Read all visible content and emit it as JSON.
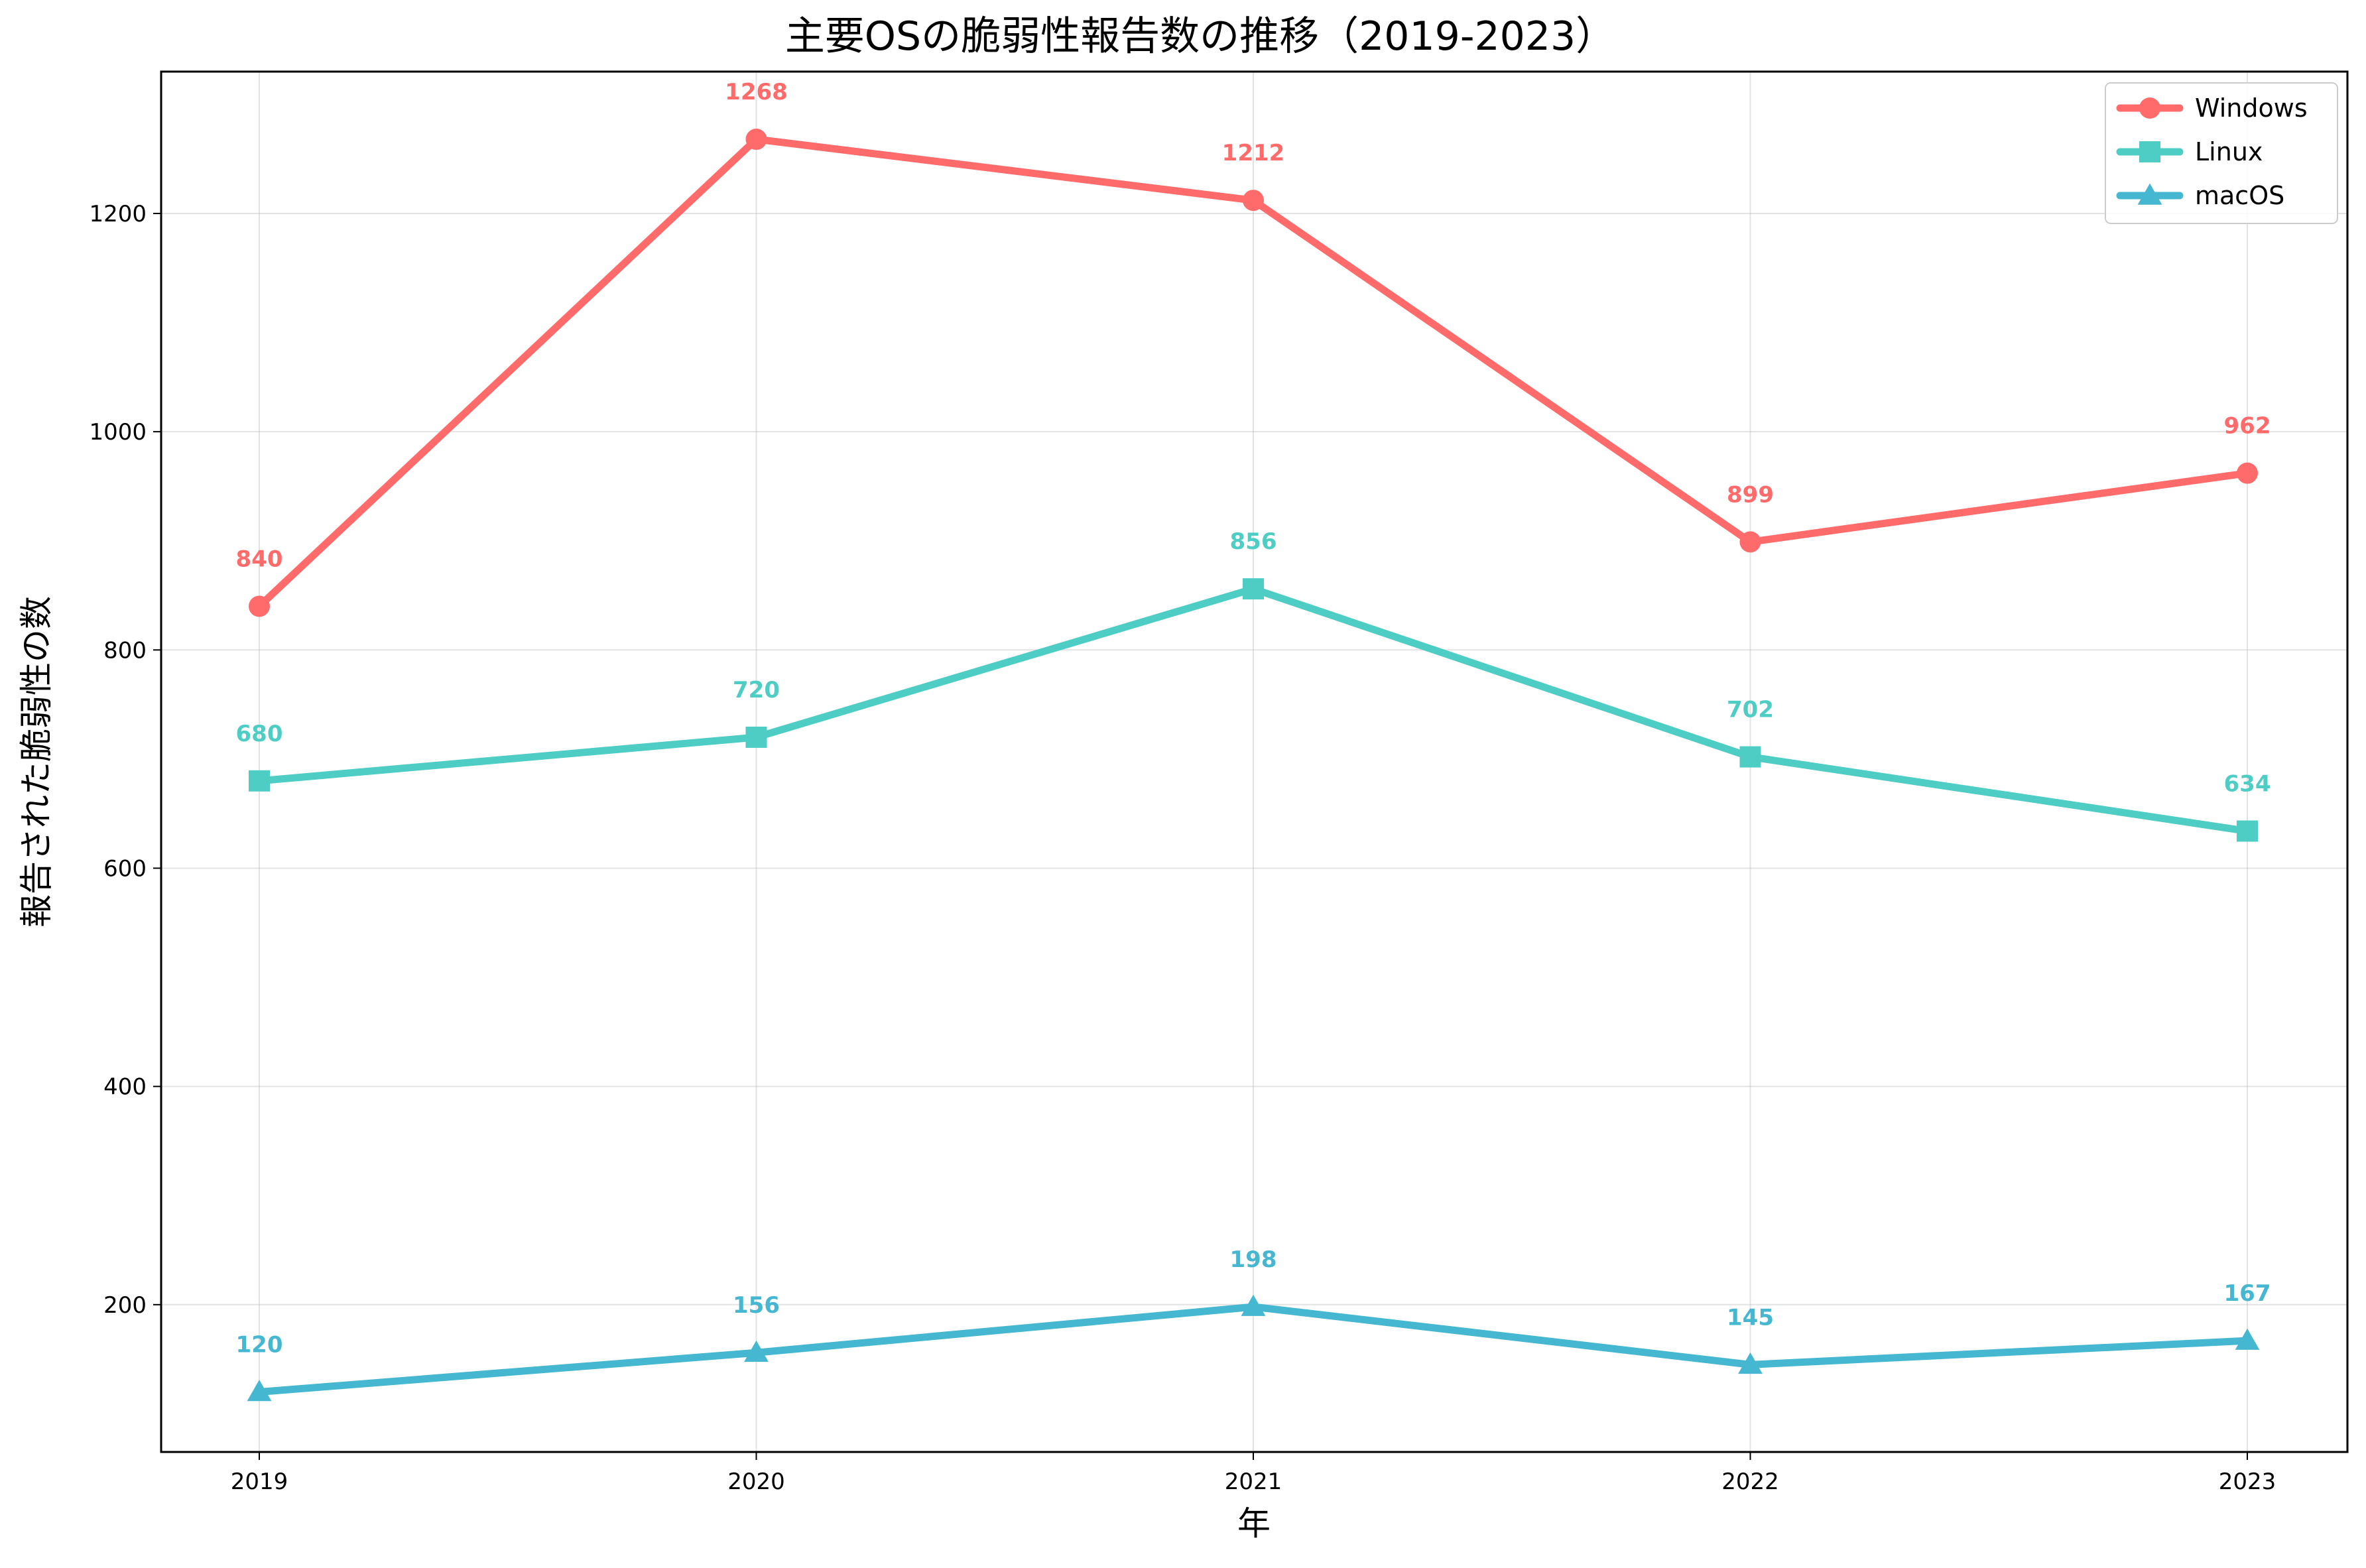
{
  "chart_data": {
    "type": "line",
    "title": "主要OSの脆弱性報告数の推移（2019-2023）",
    "xlabel": "年",
    "ylabel": "報告された脆弱性の数",
    "categories": [
      "2019",
      "2020",
      "2021",
      "2022",
      "2023"
    ],
    "ylim": [
      65,
      1330
    ],
    "yticks": [
      200,
      400,
      600,
      800,
      1000,
      1200
    ],
    "grid": true,
    "legend_position": "top-right",
    "series": [
      {
        "name": "Windows",
        "values": [
          840,
          1268,
          1212,
          899,
          962
        ],
        "color": "#ff6b6b",
        "marker": "circle"
      },
      {
        "name": "Linux",
        "values": [
          680,
          720,
          856,
          702,
          634
        ],
        "color": "#4ecdc4",
        "marker": "square"
      },
      {
        "name": "macOS",
        "values": [
          120,
          156,
          198,
          145,
          167
        ],
        "color": "#45b7d1",
        "marker": "triangle"
      }
    ]
  }
}
